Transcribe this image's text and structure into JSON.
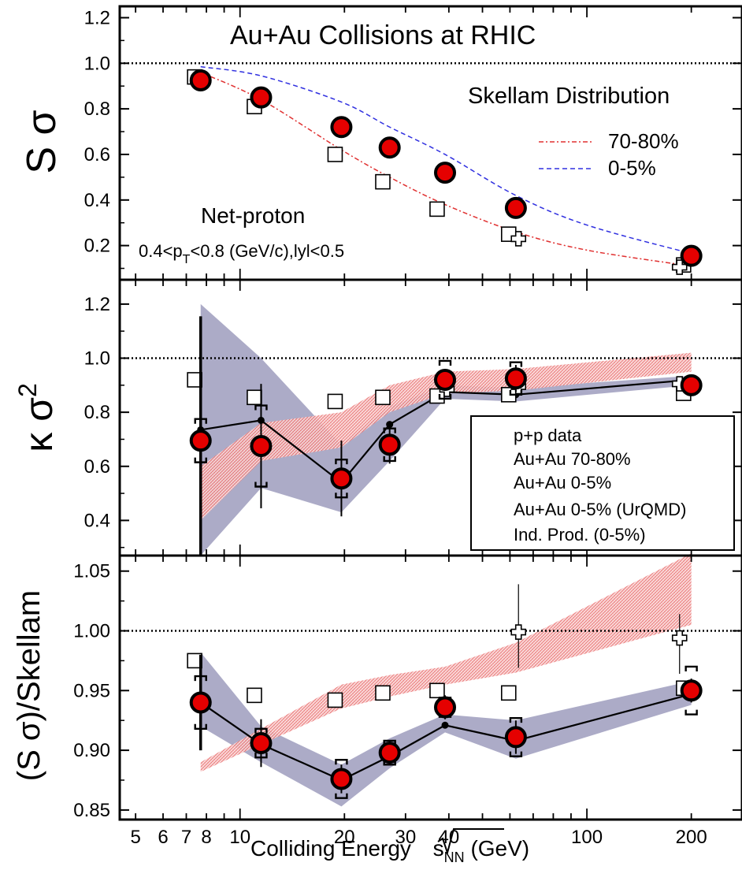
{
  "figure": {
    "title": "Au+Au Collisions at RHIC",
    "xlabel_main": "Colliding Energy ",
    "xlabel_sub": "NN",
    "xlabel_unit": " (GeV)",
    "xlabel_s": "s"
  },
  "colors": {
    "red": "#e50000",
    "band_purple": "#a8a6c4",
    "band_pink": "#f08a8a",
    "blue_dash": "#3030e0",
    "red_dash": "#e03030"
  },
  "chart_data": [
    {
      "type": "scatter",
      "panel": "top",
      "ylabel": "S σ",
      "xscale": "log",
      "xlim": [
        4.5,
        280
      ],
      "ylim": [
        0.05,
        1.25
      ],
      "yticks": [
        "0.2",
        "0.4",
        "0.6",
        "0.8",
        "1.0",
        "1.2"
      ],
      "reference_line": 1.0,
      "annotations": {
        "skellam_title": "Skellam Distribution",
        "skellam_7080": "70-80%",
        "skellam_05": "0-5%",
        "net_proton": "Net-proton",
        "cuts_a": "0.4<p",
        "cuts_sub": "T",
        "cuts_b": "<0.8 (GeV/c),lyl<0.5"
      },
      "series": [
        {
          "name": "Au+Au 0-5%",
          "x": [
            7.7,
            11.5,
            19.6,
            27,
            39,
            62.4,
            200
          ],
          "y": [
            0.925,
            0.85,
            0.72,
            0.63,
            0.52,
            0.365,
            0.155
          ]
        },
        {
          "name": "Au+Au 70-80%",
          "x": [
            7.4,
            11,
            18.8,
            25.8,
            37,
            59.5,
            190
          ],
          "y": [
            0.94,
            0.81,
            0.6,
            0.48,
            0.36,
            0.25,
            0.115
          ]
        },
        {
          "name": "p+p data",
          "x": [
            63.5,
            185
          ],
          "y": [
            0.23,
            0.105
          ]
        },
        {
          "name": "0-5%",
          "x": [
            7.7,
            11.5,
            19.6,
            27,
            39,
            62.4,
            100,
            200
          ],
          "y": [
            0.985,
            0.945,
            0.83,
            0.72,
            0.6,
            0.42,
            0.29,
            0.165
          ]
        },
        {
          "name": "70-80%",
          "x": [
            7.7,
            11.5,
            19.6,
            27,
            39,
            62.4,
            100,
            200
          ],
          "y": [
            0.96,
            0.84,
            0.62,
            0.5,
            0.38,
            0.26,
            0.18,
            0.11
          ]
        }
      ]
    },
    {
      "type": "scatter",
      "panel": "middle",
      "ylabel": "κ σ",
      "ylabel_sup": "2",
      "xscale": "log",
      "xlim": [
        4.5,
        280
      ],
      "ylim": [
        0.27,
        1.29
      ],
      "yticks": [
        "0.4",
        "0.6",
        "0.8",
        "1.0",
        "1.2"
      ],
      "reference_line": 1.0,
      "legend": {
        "position": "lower-right",
        "entries": [
          "p+p data",
          "Au+Au 70-80%",
          "Au+Au 0-5%",
          "Au+Au 0-5% (UrQMD)",
          "Ind. Prod. (0-5%)"
        ]
      },
      "series": [
        {
          "name": "Au+Au 0-5%",
          "x": [
            7.7,
            11.5,
            19.6,
            27,
            39,
            62.4,
            200
          ],
          "y": [
            0.695,
            0.675,
            0.555,
            0.68,
            0.92,
            0.925,
            0.9
          ],
          "stat_err": [
            0.46,
            0.23,
            0.14,
            0.07,
            0.04,
            0.05,
            0.03
          ],
          "sys_err": [
            0.08,
            0.15,
            0.07,
            0.06,
            0.07,
            0.06,
            0.02
          ]
        },
        {
          "name": "Au+Au 70-80%",
          "x": [
            7.4,
            11,
            18.8,
            25.8,
            37,
            59.5,
            190
          ],
          "y": [
            0.92,
            0.855,
            0.84,
            0.855,
            0.86,
            0.865,
            0.87
          ]
        },
        {
          "name": "p+p data",
          "x": [
            39.5,
            63.5,
            185
          ],
          "y": [
            0.885,
            0.895,
            0.905
          ]
        },
        {
          "name": "Ind. Prod. (0-5%)",
          "x": [
            7.7,
            11.5,
            19.6,
            27,
            39,
            62.4,
            200
          ],
          "y": [
            0.735,
            0.77,
            0.54,
            0.755,
            0.875,
            0.865,
            0.92
          ],
          "band_low": [
            0.27,
            0.52,
            0.43,
            0.62,
            0.85,
            0.84,
            0.9
          ],
          "band_high": [
            1.2,
            1.0,
            0.68,
            0.82,
            0.9,
            0.89,
            0.935
          ]
        },
        {
          "name": "Au+Au 0-5% (UrQMD)",
          "x": [
            7.7,
            11.5,
            19.6,
            27,
            39,
            62.4,
            200
          ],
          "band_low": [
            0.4,
            0.62,
            0.67,
            0.8,
            0.87,
            0.88,
            0.95
          ],
          "band_high": [
            0.6,
            0.76,
            0.8,
            0.9,
            0.95,
            0.96,
            1.02
          ]
        }
      ]
    },
    {
      "type": "scatter",
      "panel": "bottom",
      "ylabel": "(S σ)/Skellam",
      "xscale": "log",
      "xlim": [
        4.5,
        280
      ],
      "ylim": [
        0.842,
        1.063
      ],
      "yticks": [
        "0.85",
        "0.90",
        "0.95",
        "1.00",
        "1.05"
      ],
      "xticks": [
        "5",
        "6",
        "7",
        "8",
        "10",
        "20",
        "30",
        "40",
        "100",
        "200"
      ],
      "reference_line": 1.0,
      "series": [
        {
          "name": "Au+Au 0-5%",
          "x": [
            7.7,
            11.5,
            19.6,
            27,
            39,
            62.4,
            200
          ],
          "y": [
            0.94,
            0.906,
            0.876,
            0.898,
            0.936,
            0.911,
            0.95
          ],
          "stat_err": [
            0.04,
            0.02,
            0.012,
            0.01,
            0.01,
            0.014,
            0.01
          ],
          "sys_err": [
            0.022,
            0.012,
            0.016,
            0.01,
            0.008,
            0.016,
            0.02
          ]
        },
        {
          "name": "Au+Au 70-80%",
          "x": [
            7.4,
            11,
            18.8,
            25.8,
            37,
            59.5,
            190
          ],
          "y": [
            0.975,
            0.946,
            0.942,
            0.948,
            0.95,
            0.948,
            0.952
          ]
        },
        {
          "name": "p+p data",
          "x": [
            63.5,
            185
          ],
          "y": [
            0.999,
            0.994
          ]
        },
        {
          "name": "Ind. Prod. (0-5%)",
          "x": [
            7.7,
            11.5,
            19.6,
            27,
            39,
            62.4,
            200
          ],
          "y": [
            0.94,
            0.905,
            0.875,
            0.895,
            0.921,
            0.908,
            0.947
          ],
          "band_low": [
            0.92,
            0.89,
            0.853,
            0.885,
            0.915,
            0.893,
            0.938
          ],
          "band_high": [
            0.982,
            0.92,
            0.888,
            0.91,
            0.93,
            0.925,
            0.958
          ]
        },
        {
          "name": "Au+Au 0-5% (UrQMD)",
          "x": [
            7.7,
            11.5,
            19.6,
            27,
            39,
            62.4,
            200
          ],
          "band_low": [
            0.882,
            0.905,
            0.935,
            0.945,
            0.955,
            0.965,
            1.005
          ],
          "band_high": [
            0.89,
            0.918,
            0.955,
            0.963,
            0.97,
            0.99,
            1.065
          ]
        }
      ]
    }
  ]
}
